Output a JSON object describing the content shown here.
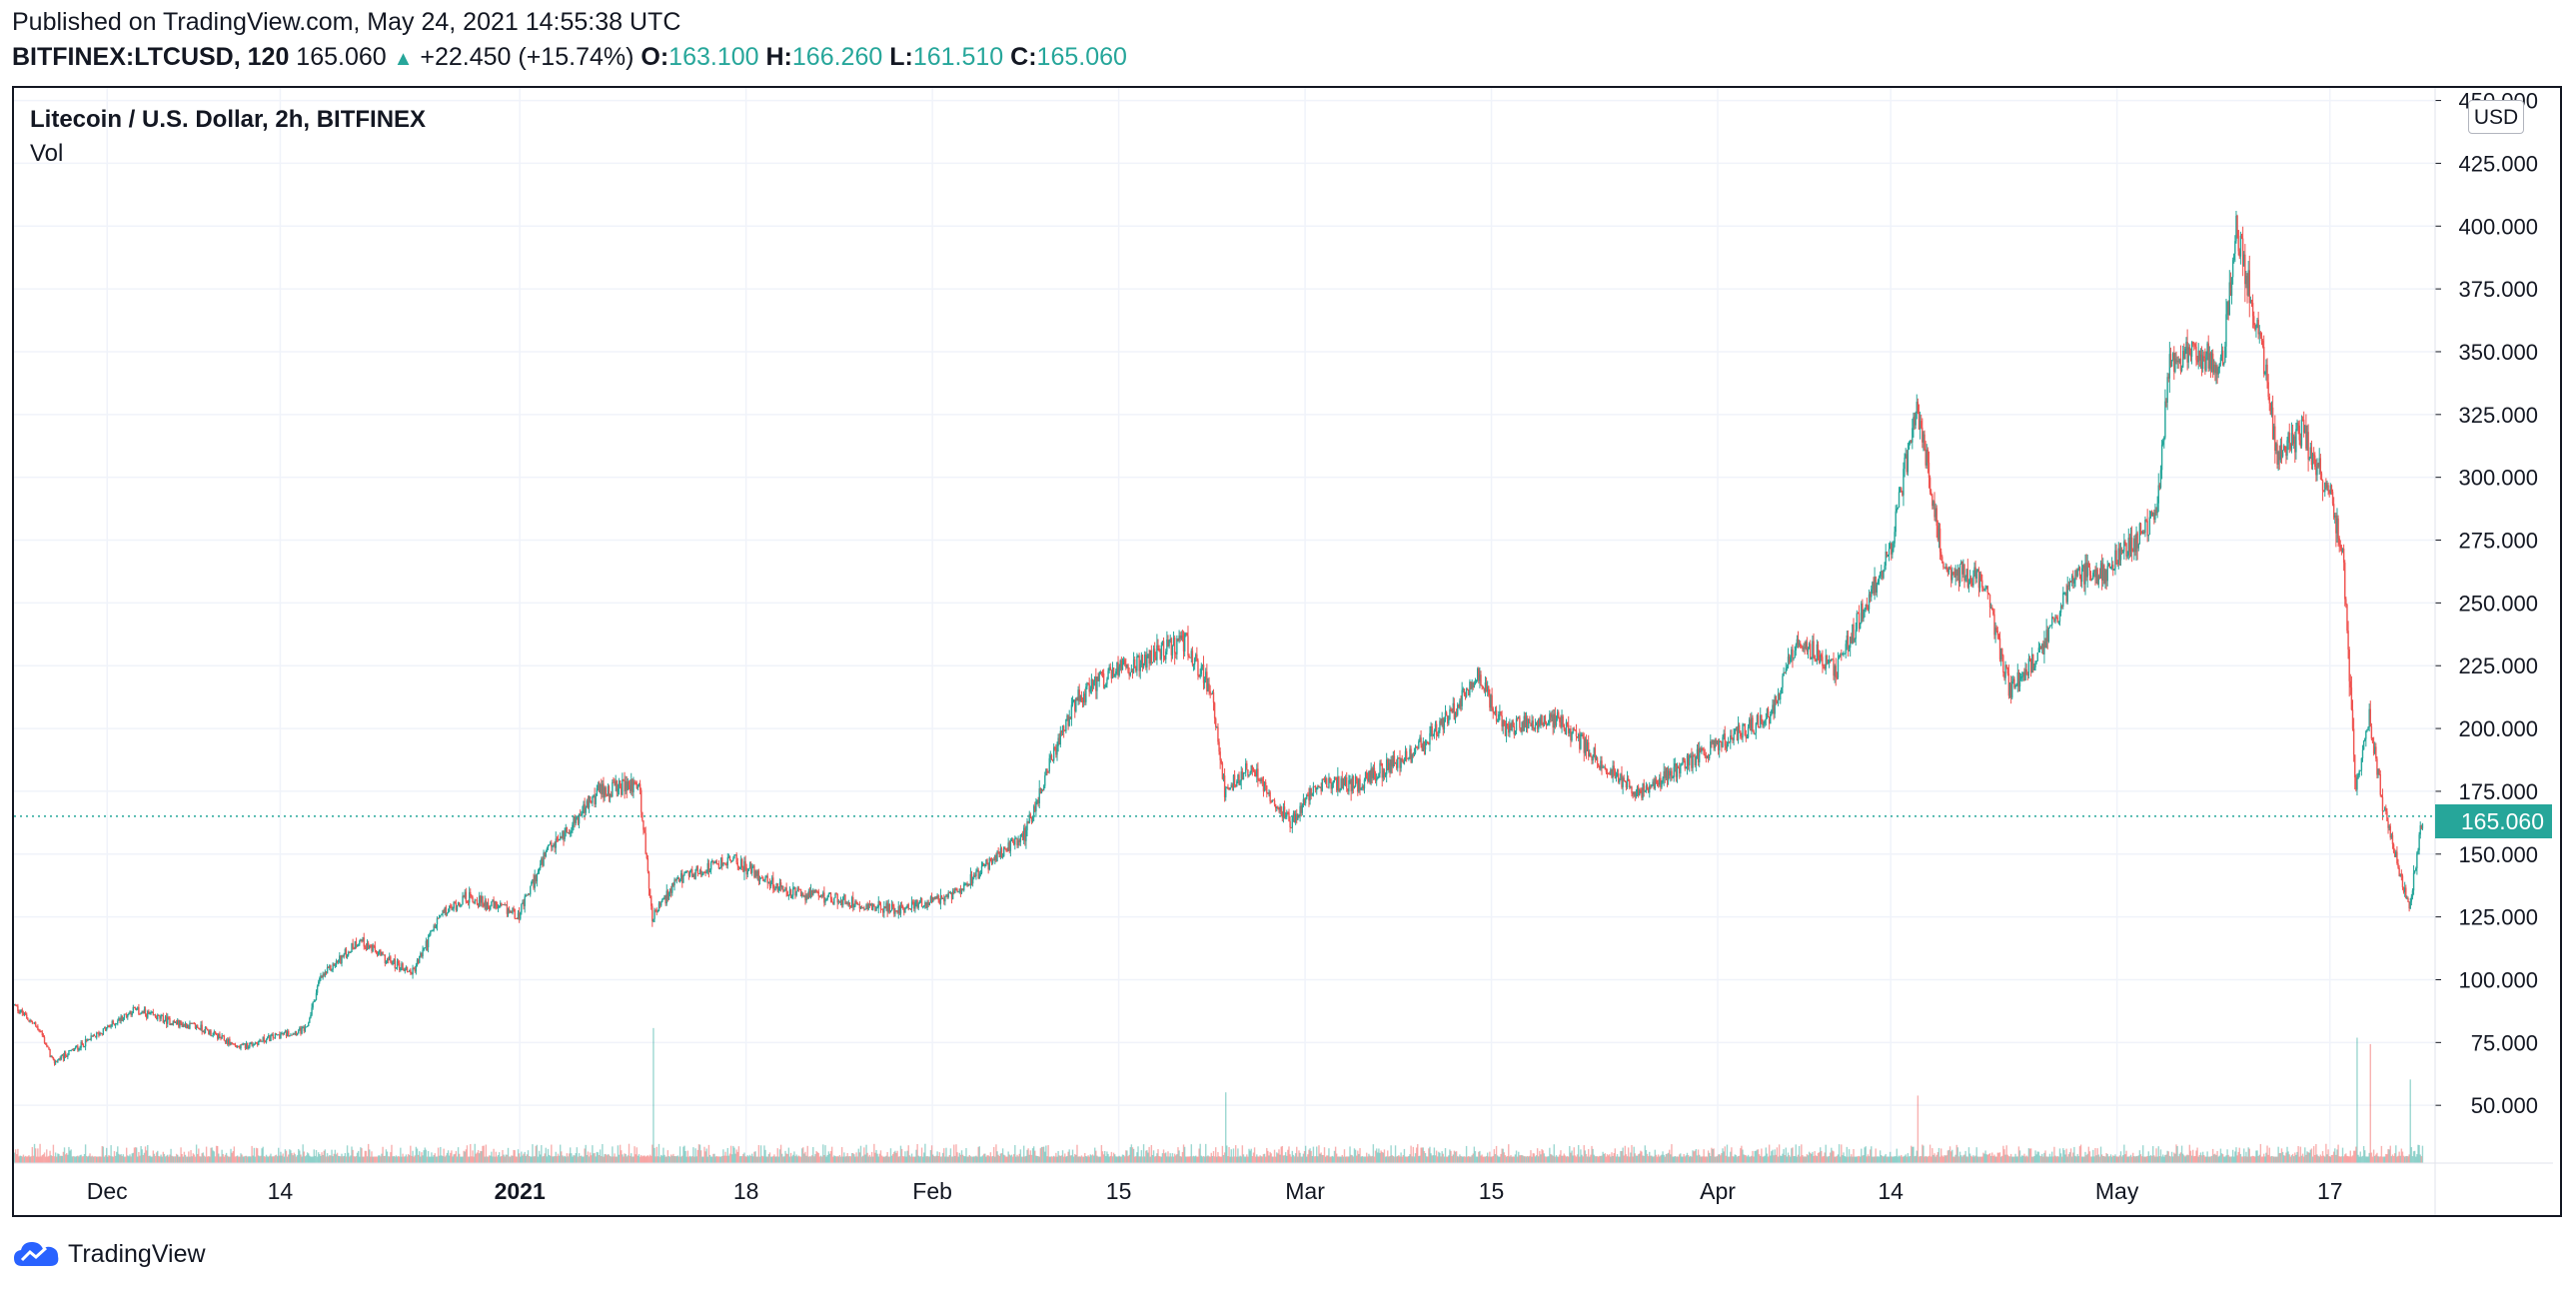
{
  "header": {
    "published": "Published on TradingView.com, May 24, 2021 14:55:38 UTC",
    "symbol": "BITFINEX:LTCUSD, 120",
    "last": "165.060",
    "change": "+22.450 (+15.74%)",
    "o_label": "O:",
    "o_value": "163.100",
    "h_label": "H:",
    "h_value": "166.260",
    "l_label": "L:",
    "l_value": "161.510",
    "c_label": "C:",
    "c_value": "165.060"
  },
  "legend": {
    "title": "Litecoin / U.S. Dollar, 2h, BITFINEX",
    "vol_label": "Vol"
  },
  "currency_badge": "USD",
  "last_price_tag": "165.060",
  "footer": {
    "brand": "TradingView"
  },
  "colors": {
    "up": "#26a69a",
    "down": "#ef5350",
    "grid": "#f0f3fa",
    "axis_text": "#131722"
  },
  "chart_data": {
    "type": "candlestick",
    "title": "Litecoin / U.S. Dollar, 2h, BITFINEX",
    "ylabel": "USD",
    "ylim": [
      27,
      455
    ],
    "y_ticks": [
      "50.000",
      "75.000",
      "100.000",
      "125.000",
      "150.000",
      "175.000",
      "200.000",
      "225.000",
      "250.000",
      "275.000",
      "300.000",
      "325.000",
      "350.000",
      "375.000",
      "400.000",
      "425.000",
      "450.000"
    ],
    "x_ticks": [
      {
        "date": "2020-12-01",
        "label": "Dec",
        "bold": false
      },
      {
        "date": "2020-12-14",
        "label": "14",
        "bold": false
      },
      {
        "date": "2021-01-01",
        "label": "2021",
        "bold": true
      },
      {
        "date": "2021-01-18",
        "label": "18",
        "bold": false
      },
      {
        "date": "2021-02-01",
        "label": "Feb",
        "bold": false
      },
      {
        "date": "2021-02-15",
        "label": "15",
        "bold": false
      },
      {
        "date": "2021-03-01",
        "label": "Mar",
        "bold": false
      },
      {
        "date": "2021-03-15",
        "label": "15",
        "bold": false
      },
      {
        "date": "2021-04-01",
        "label": "Apr",
        "bold": false
      },
      {
        "date": "2021-04-14",
        "label": "14",
        "bold": false
      },
      {
        "date": "2021-05-01",
        "label": "May",
        "bold": false
      },
      {
        "date": "2021-05-17",
        "label": "17",
        "bold": false
      }
    ],
    "x_range": [
      "2020-11-24",
      "2021-05-24"
    ],
    "last_close": 165.06,
    "price_path": [
      {
        "date": "2020-11-24",
        "price": 90
      },
      {
        "date": "2020-11-26",
        "price": 80
      },
      {
        "date": "2020-11-27",
        "price": 67
      },
      {
        "date": "2020-11-30",
        "price": 77
      },
      {
        "date": "2020-12-03",
        "price": 88
      },
      {
        "date": "2020-12-06",
        "price": 83
      },
      {
        "date": "2020-12-08",
        "price": 81
      },
      {
        "date": "2020-12-11",
        "price": 73
      },
      {
        "date": "2020-12-14",
        "price": 78
      },
      {
        "date": "2020-12-16",
        "price": 80
      },
      {
        "date": "2020-12-17",
        "price": 100
      },
      {
        "date": "2020-12-20",
        "price": 116
      },
      {
        "date": "2020-12-22",
        "price": 108
      },
      {
        "date": "2020-12-24",
        "price": 103
      },
      {
        "date": "2020-12-26",
        "price": 125
      },
      {
        "date": "2020-12-28",
        "price": 133
      },
      {
        "date": "2021-01-01",
        "price": 126
      },
      {
        "date": "2021-01-03",
        "price": 150
      },
      {
        "date": "2021-01-05",
        "price": 162
      },
      {
        "date": "2021-01-07",
        "price": 175
      },
      {
        "date": "2021-01-10",
        "price": 178
      },
      {
        "date": "2021-01-11",
        "price": 125
      },
      {
        "date": "2021-01-13",
        "price": 140
      },
      {
        "date": "2021-01-17",
        "price": 148
      },
      {
        "date": "2021-01-21",
        "price": 135
      },
      {
        "date": "2021-01-25",
        "price": 132
      },
      {
        "date": "2021-01-29",
        "price": 128
      },
      {
        "date": "2021-02-02",
        "price": 132
      },
      {
        "date": "2021-02-05",
        "price": 145
      },
      {
        "date": "2021-02-08",
        "price": 158
      },
      {
        "date": "2021-02-10",
        "price": 188
      },
      {
        "date": "2021-02-12",
        "price": 212
      },
      {
        "date": "2021-02-14",
        "price": 220
      },
      {
        "date": "2021-02-17",
        "price": 228
      },
      {
        "date": "2021-02-20",
        "price": 235
      },
      {
        "date": "2021-02-22",
        "price": 215
      },
      {
        "date": "2021-02-23",
        "price": 175
      },
      {
        "date": "2021-02-25",
        "price": 185
      },
      {
        "date": "2021-02-28",
        "price": 162
      },
      {
        "date": "2021-03-02",
        "price": 178
      },
      {
        "date": "2021-03-05",
        "price": 178
      },
      {
        "date": "2021-03-09",
        "price": 190
      },
      {
        "date": "2021-03-12",
        "price": 205
      },
      {
        "date": "2021-03-14",
        "price": 222
      },
      {
        "date": "2021-03-16",
        "price": 200
      },
      {
        "date": "2021-03-20",
        "price": 204
      },
      {
        "date": "2021-03-23",
        "price": 188
      },
      {
        "date": "2021-03-26",
        "price": 174
      },
      {
        "date": "2021-03-29",
        "price": 184
      },
      {
        "date": "2021-04-02",
        "price": 196
      },
      {
        "date": "2021-04-05",
        "price": 205
      },
      {
        "date": "2021-04-07",
        "price": 235
      },
      {
        "date": "2021-04-10",
        "price": 224
      },
      {
        "date": "2021-04-12",
        "price": 248
      },
      {
        "date": "2021-04-14",
        "price": 270
      },
      {
        "date": "2021-04-16",
        "price": 330
      },
      {
        "date": "2021-04-18",
        "price": 265
      },
      {
        "date": "2021-04-21",
        "price": 258
      },
      {
        "date": "2021-04-23",
        "price": 215
      },
      {
        "date": "2021-04-25",
        "price": 228
      },
      {
        "date": "2021-04-28",
        "price": 262
      },
      {
        "date": "2021-04-30",
        "price": 262
      },
      {
        "date": "2021-05-02",
        "price": 272
      },
      {
        "date": "2021-05-04",
        "price": 285
      },
      {
        "date": "2021-05-05",
        "price": 345
      },
      {
        "date": "2021-05-07",
        "price": 350
      },
      {
        "date": "2021-05-09",
        "price": 345
      },
      {
        "date": "2021-05-10",
        "price": 400
      },
      {
        "date": "2021-05-12",
        "price": 350
      },
      {
        "date": "2021-05-13",
        "price": 310
      },
      {
        "date": "2021-05-15",
        "price": 318
      },
      {
        "date": "2021-05-16",
        "price": 305
      },
      {
        "date": "2021-05-17",
        "price": 295
      },
      {
        "date": "2021-05-18",
        "price": 270
      },
      {
        "date": "2021-05-19",
        "price": 175
      },
      {
        "date": "2021-05-20",
        "price": 205
      },
      {
        "date": "2021-05-21",
        "price": 170
      },
      {
        "date": "2021-05-23",
        "price": 128
      },
      {
        "date": "2021-05-24",
        "price": 165
      }
    ],
    "volume_spikes": [
      {
        "date": "2021-01-11",
        "rel": 0.42
      },
      {
        "date": "2021-02-23",
        "rel": 0.22
      },
      {
        "date": "2021-04-16",
        "rel": 0.21
      },
      {
        "date": "2021-05-19",
        "rel": 0.39
      },
      {
        "date": "2021-05-20",
        "rel": 0.37
      },
      {
        "date": "2021-05-23",
        "rel": 0.26
      }
    ],
    "volume_max_price_equivalent": 155
  }
}
